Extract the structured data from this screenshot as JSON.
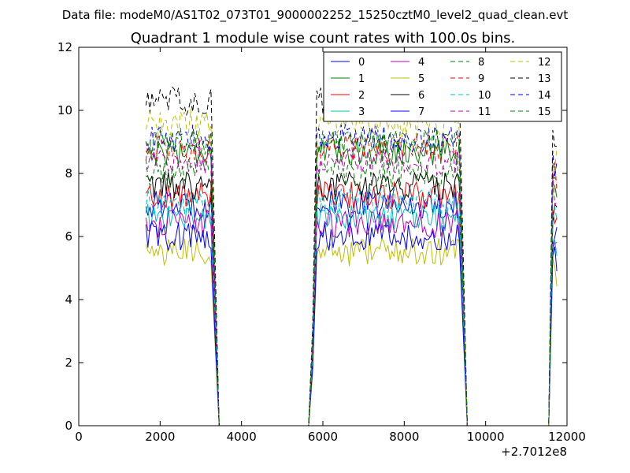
{
  "figure": {
    "suptitle": "Data file: modeM0/AS1T02_073T01_9000002252_15250cztM0_level2_quad_clean.evt"
  },
  "chart_data": {
    "type": "line",
    "title": "Quadrant 1 module wise count rates with 100.0s bins.",
    "xlabel": "",
    "ylabel": "",
    "x_offset_label": "+2.7012e8",
    "xlim": [
      0,
      12000
    ],
    "ylim": [
      0,
      12
    ],
    "xticks": [
      0,
      2000,
      4000,
      6000,
      8000,
      10000,
      12000
    ],
    "xtick_labels": [
      "0",
      "2000",
      "4000",
      "6000",
      "8000",
      "10000",
      "12000"
    ],
    "yticks": [
      0,
      2,
      4,
      6,
      8,
      10,
      12
    ],
    "ytick_labels": [
      "0",
      "2",
      "4",
      "6",
      "8",
      "10",
      "12"
    ],
    "grid": false,
    "legend_placement": "top-right",
    "legend_columns": 4,
    "segments": [
      {
        "start": 1650,
        "end": 3250,
        "drop_to_zero_at": 3450
      },
      {
        "start": 5850,
        "end": 9350,
        "drop_to_zero_at": 9550,
        "rise_from_zero_at": 5650
      },
      {
        "start": 11650,
        "end": 11750,
        "rise_from_zero_at": 11550
      }
    ],
    "series": [
      {
        "name": "0",
        "color": "#0000ff",
        "dashed": false,
        "level": 7.0
      },
      {
        "name": "1",
        "color": "#008000",
        "dashed": false,
        "level": 8.7
      },
      {
        "name": "2",
        "color": "#ff0000",
        "dashed": false,
        "level": 7.3
      },
      {
        "name": "3",
        "color": "#00bfbf",
        "dashed": false,
        "level": 6.6
      },
      {
        "name": "4",
        "color": "#bf00bf",
        "dashed": false,
        "level": 6.4
      },
      {
        "name": "5",
        "color": "#bfbf00",
        "dashed": false,
        "level": 5.5
      },
      {
        "name": "6",
        "color": "#000000",
        "dashed": false,
        "level": 7.6
      },
      {
        "name": "7",
        "color": "#0000ff",
        "dashed": false,
        "level": 6.0
      },
      {
        "name": "8",
        "color": "#008000",
        "dashed": true,
        "level": 8.0
      },
      {
        "name": "9",
        "color": "#ff0000",
        "dashed": true,
        "level": 8.8
      },
      {
        "name": "10",
        "color": "#00bfbf",
        "dashed": true,
        "level": 7.1
      },
      {
        "name": "11",
        "color": "#bf00bf",
        "dashed": true,
        "level": 8.4
      },
      {
        "name": "12",
        "color": "#bfbf00",
        "dashed": true,
        "level": 9.6
      },
      {
        "name": "13",
        "color": "#000000",
        "dashed": true,
        "level": 10.3
      },
      {
        "name": "14",
        "color": "#0000ff",
        "dashed": true,
        "level": 9.1
      },
      {
        "name": "15",
        "color": "#008000",
        "dashed": true,
        "level": 9.0
      }
    ]
  }
}
